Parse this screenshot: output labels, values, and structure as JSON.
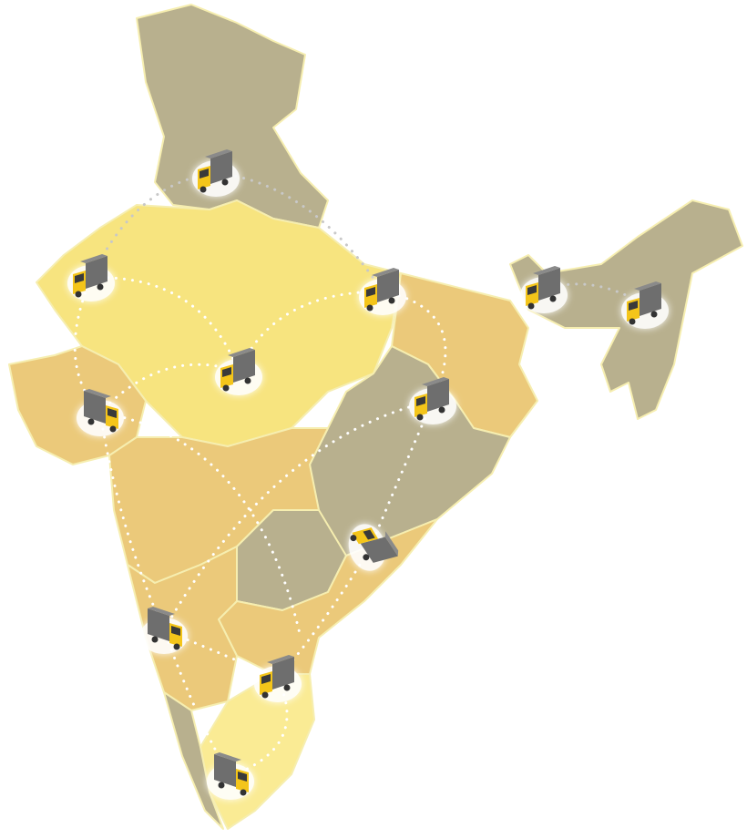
{
  "map": {
    "colors": {
      "olive_region": "#b8b08e",
      "yellow_region": "#f7e47f",
      "tan_region": "#ebc97a",
      "light_yellow_region": "#faeb94",
      "border": "#f6eeb0",
      "route_north": "#c8c8c8",
      "route": "#ffffff",
      "truck_cab": "#f4c51a",
      "truck_box": "#6e6e6e"
    },
    "icon": "delivery-truck-icon",
    "route_style": "dotted"
  }
}
